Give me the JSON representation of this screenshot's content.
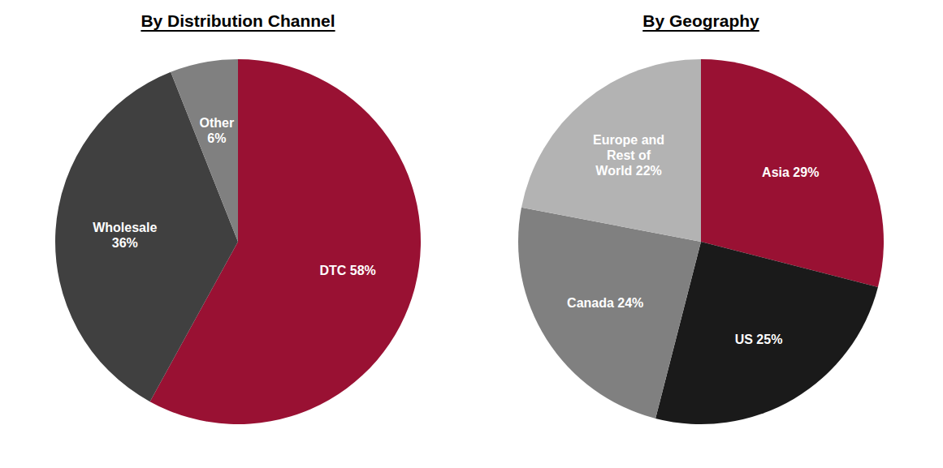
{
  "chart_data": [
    {
      "type": "pie",
      "title": "By Distribution Channel",
      "categories": [
        "DTC 58%",
        "Wholesale\n36%",
        "Other\n6%"
      ],
      "values": [
        58,
        36,
        6
      ],
      "colors": [
        "#991133",
        "#404040",
        "#808080"
      ]
    },
    {
      "type": "pie",
      "title": "By Geography",
      "categories": [
        "Asia 29%",
        "US 25%",
        "Canada 24%",
        "Europe and\nRest of\nWorld 22%"
      ],
      "values": [
        29,
        25,
        24,
        22
      ],
      "colors": [
        "#991133",
        "#1a1a1a",
        "#808080",
        "#b3b3b3"
      ]
    }
  ]
}
